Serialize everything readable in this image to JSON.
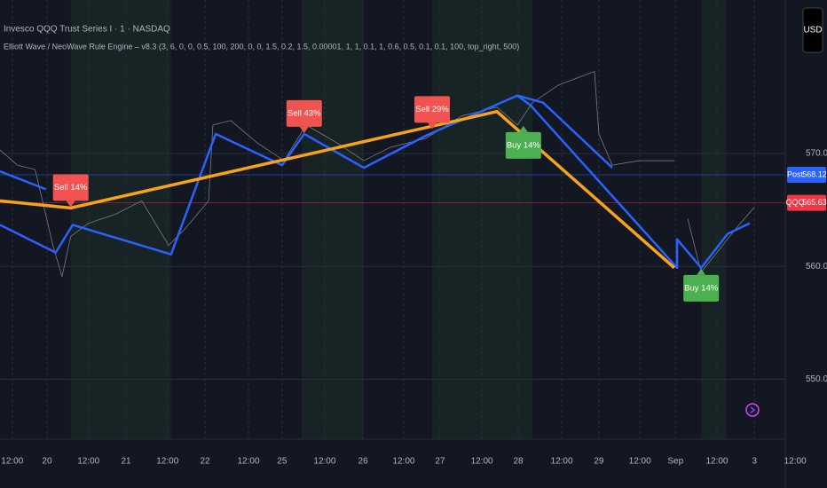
{
  "header": {
    "symbol": "Invesco QQQ Trust Series I · 1 · NASDAQ",
    "indicator": "Elliott Wave / NeoWave Rule Engine – v8.3 (3, 6, 0, 0, 0.5, 100, 200, 0, 0, 1.5, 0.2, 1.5, 0.00001, 1, 1, 0.1, 1, 0.6, 0.5, 0.1, 0.1, 100, top_right, 500)",
    "currency": "USD"
  },
  "chart_data": {
    "type": "line",
    "xlim": [
      -0.31,
      19.57
    ],
    "ylim": [
      544.7,
      583.6
    ],
    "xticks": [
      {
        "value": 0,
        "label": "12:00"
      },
      {
        "value": 0.88,
        "label": "20"
      },
      {
        "value": 1.93,
        "label": "12:00"
      },
      {
        "value": 2.88,
        "label": "21"
      },
      {
        "value": 3.93,
        "label": "12:00"
      },
      {
        "value": 4.88,
        "label": "22"
      },
      {
        "value": 5.98,
        "label": "12:00"
      },
      {
        "value": 6.83,
        "label": "25"
      },
      {
        "value": 7.91,
        "label": "12:00"
      },
      {
        "value": 8.88,
        "label": "26"
      },
      {
        "value": 9.91,
        "label": "12:00"
      },
      {
        "value": 10.83,
        "label": "27"
      },
      {
        "value": 11.89,
        "label": "12:00"
      },
      {
        "value": 12.81,
        "label": "28"
      },
      {
        "value": 13.91,
        "label": "12:00"
      },
      {
        "value": 14.85,
        "label": "29"
      },
      {
        "value": 15.89,
        "label": "12:00"
      },
      {
        "value": 16.79,
        "label": "Sep"
      },
      {
        "value": 17.84,
        "label": "12:00"
      },
      {
        "value": 18.79,
        "label": "3"
      },
      {
        "value": 19.82,
        "label": "12:00"
      }
    ],
    "yticks": [
      {
        "value": 570,
        "label": "570.00"
      },
      {
        "value": 560,
        "label": "560.00"
      },
      {
        "value": 550,
        "label": "550.00"
      }
    ],
    "grid": true,
    "shaded_ranges": [
      [
        1.48,
        4.02
      ],
      [
        7.33,
        8.9
      ],
      [
        10.63,
        13.17
      ],
      [
        17.44,
        18.07
      ]
    ],
    "series": [
      {
        "color": "#787b86",
        "width": 0.8,
        "x": [
          -0.31,
          0.13,
          0.58,
          1.03,
          1.26,
          1.48,
          1.93,
          2.61,
          3.28,
          3.96,
          4.4,
          4.97,
          5.08,
          5.53,
          6.2,
          6.88,
          7.44,
          8.22,
          8.9,
          9.57,
          10.47,
          11.37,
          12.27,
          12.79,
          13.17,
          13.84,
          14.74,
          14.85,
          15.19,
          15.87,
          16.76,
          16.83,
          17.1,
          17.44,
          17.89,
          18.34,
          18.79
        ],
        "values": [
          570.32,
          568.97,
          568.58,
          561.86,
          559.09,
          562.65,
          563.83,
          564.62,
          565.81,
          561.86,
          563.44,
          565.81,
          572.53,
          572.92,
          570.95,
          569.37,
          572.53,
          570.95,
          569.37,
          570.55,
          571.34,
          573.32,
          574.11,
          572.53,
          574.51,
          576.09,
          577.27,
          571.74,
          568.97,
          569.37,
          569.37,
          null,
          564.23,
          559.49,
          561.46,
          563.44,
          565.26
        ]
      },
      {
        "color": "#2962ff",
        "width": 2.5,
        "x": [
          -0.31,
          0.85
        ],
        "values": [
          568.42,
          566.84
        ]
      },
      {
        "color": "#2962ff",
        "width": 2.5,
        "x": [
          -0.31,
          1.1,
          1.53,
          4.02,
          5.15,
          6.83,
          7.39,
          8.9,
          10.47,
          12.79,
          13.12,
          16.83,
          16.83,
          17.44,
          18.11,
          18.67
        ],
        "values": [
          563.68,
          561.23,
          563.68,
          561.07,
          571.74,
          568.97,
          571.74,
          568.74,
          571.58,
          575.14,
          574.27,
          559.88,
          562.41,
          559.88,
          562.89,
          563.83
        ]
      },
      {
        "color": "#2962ff",
        "width": 2.5,
        "x": [
          12.79,
          13.44,
          15.19
        ],
        "values": [
          575.14,
          574.51,
          568.74
        ]
      },
      {
        "color": "#f7a21b",
        "width": 3.5,
        "x": [
          -0.31,
          1.48,
          12.27,
          16.76
        ],
        "values": [
          565.81,
          565.18,
          573.72,
          559.88
        ]
      }
    ],
    "annotations": [
      {
        "text": "Sell 14%",
        "x": 1.48,
        "y": 565.18,
        "color": "#f05350",
        "position": "above"
      },
      {
        "text": "Sell 43%",
        "x": 7.39,
        "y": 571.74,
        "color": "#f05350",
        "position": "above"
      },
      {
        "text": "Sell 29%",
        "x": 10.63,
        "y": 572.1,
        "color": "#f05350",
        "position": "above"
      },
      {
        "text": "Buy 14%",
        "x": 12.94,
        "y": 572.53,
        "color": "#4caf50",
        "position": "below"
      },
      {
        "text": "Buy 14%",
        "x": 17.44,
        "y": 559.88,
        "color": "#4caf50",
        "position": "below"
      }
    ],
    "price_tags": [
      {
        "name": "Post",
        "value": 568.12,
        "color": "#2962ff"
      },
      {
        "name": "QQQ",
        "value": 565.63,
        "color": "#f23645"
      }
    ]
  }
}
